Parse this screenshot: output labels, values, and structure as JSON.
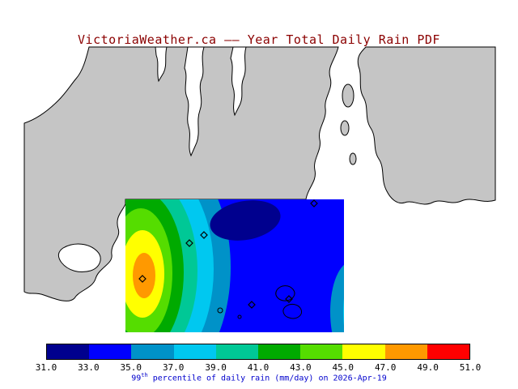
{
  "title": "VictoriaWeather.ca —— Year Total Daily Rain PDF",
  "title_color": "#8b0000",
  "map": {
    "land_color": "#c5c5c5",
    "water_color": "#ffffff",
    "coast_color": "#000000"
  },
  "colorbar": {
    "colors": [
      "#00008e",
      "#0000ff",
      "#0092c8",
      "#00c8f0",
      "#00c896",
      "#00aa00",
      "#55dd00",
      "#ffff00",
      "#ff9900",
      "#ff0000"
    ],
    "ticks": [
      "31.0",
      "33.0",
      "35.0",
      "37.0",
      "39.0",
      "41.0",
      "43.0",
      "45.0",
      "47.0",
      "49.0",
      "51.0"
    ]
  },
  "caption": {
    "num": "99",
    "sup": "th",
    "rest": " percentile of daily rain (mm/day) on 2026-Apr-19",
    "color": "#0000cd"
  }
}
